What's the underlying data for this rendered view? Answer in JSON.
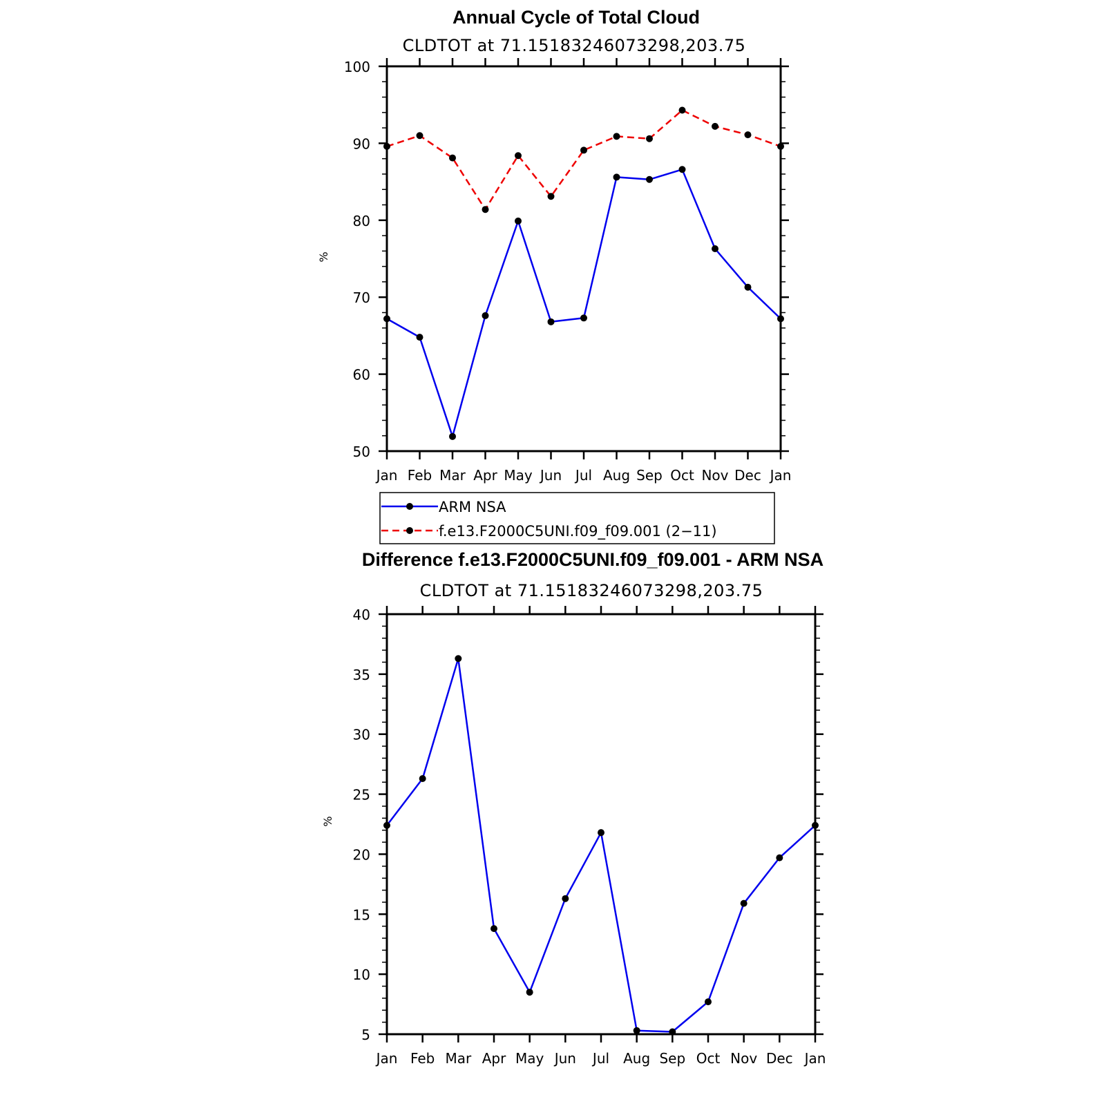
{
  "chart_data": [
    {
      "type": "line",
      "title": "Annual Cycle of Total Cloud",
      "subtitle": "CLDTOT at 71.15183246073298,203.75",
      "ylabel": "%",
      "xlabel": "",
      "ylim": [
        50,
        100
      ],
      "yticks": [
        "50",
        "60",
        "70",
        "80",
        "90",
        "100"
      ],
      "categories": [
        "Jan",
        "Feb",
        "Mar",
        "Apr",
        "May",
        "Jun",
        "Jul",
        "Aug",
        "Sep",
        "Oct",
        "Nov",
        "Dec",
        "Jan"
      ],
      "series": [
        {
          "name": "ARM NSA",
          "color": "#0000ee",
          "dash": "solid",
          "values": [
            67.2,
            64.8,
            51.9,
            67.6,
            79.9,
            66.8,
            67.3,
            85.6,
            85.3,
            86.6,
            76.3,
            71.3,
            67.2
          ]
        },
        {
          "name": "f.e13.F2000C5UNI.f09_f09.001 (2−11)",
          "color": "#ee0000",
          "dash": "dashed",
          "values": [
            89.6,
            91.0,
            88.1,
            81.4,
            88.4,
            83.1,
            89.1,
            90.9,
            90.6,
            94.3,
            92.2,
            91.1,
            89.6
          ]
        }
      ],
      "legend": [
        "ARM NSA",
        "f.e13.F2000C5UNI.f09_f09.001 (2−11)"
      ],
      "legend_position": "below"
    },
    {
      "type": "line",
      "title": "Difference f.e13.F2000C5UNI.f09_f09.001 - ARM NSA",
      "subtitle": "CLDTOT at 71.15183246073298,203.75",
      "ylabel": "%",
      "xlabel": "",
      "ylim": [
        5,
        40
      ],
      "yticks": [
        "5",
        "10",
        "15",
        "20",
        "25",
        "30",
        "35",
        "40"
      ],
      "categories": [
        "Jan",
        "Feb",
        "Mar",
        "Apr",
        "May",
        "Jun",
        "Jul",
        "Aug",
        "Sep",
        "Oct",
        "Nov",
        "Dec",
        "Jan"
      ],
      "series": [
        {
          "name": "Difference",
          "color": "#0000ee",
          "dash": "solid",
          "values": [
            22.4,
            26.3,
            36.3,
            13.8,
            8.5,
            16.3,
            21.8,
            5.3,
            5.2,
            7.7,
            15.9,
            19.7,
            22.4
          ]
        }
      ]
    }
  ]
}
